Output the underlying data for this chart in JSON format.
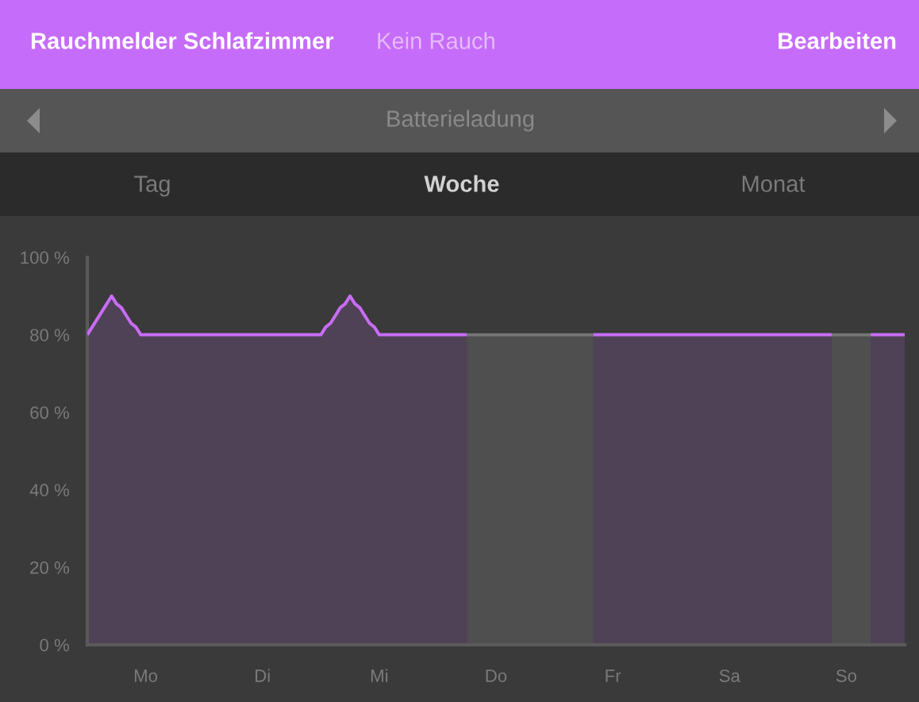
{
  "chart_data": {
    "type": "area",
    "title": "Batterieladung",
    "annotations": [
      "Rauchmelder Schlafzimmer",
      "Kein Rauch",
      "Bearbeiten",
      "Tag",
      "Woche",
      "Monat"
    ],
    "categories": [
      null,
      null,
      null,
      null,
      null,
      null,
      null,
      null,
      null,
      null,
      null,
      null,
      "Mo",
      null,
      null,
      null,
      null,
      null,
      null,
      null,
      null,
      null,
      null,
      null,
      null,
      null,
      null,
      null,
      null,
      null,
      null,
      null,
      null,
      null,
      null,
      null,
      "Di",
      null,
      null,
      null,
      null,
      null,
      null,
      null,
      null,
      null,
      null,
      null,
      null,
      null,
      null,
      null,
      null,
      null,
      null,
      null,
      null,
      null,
      null,
      null,
      "Mi",
      null,
      null,
      null,
      null,
      null,
      null,
      null,
      null,
      null,
      null,
      null,
      null,
      null,
      null,
      null,
      null,
      null,
      null,
      null,
      null,
      null,
      null,
      null,
      "Do",
      null,
      null,
      null,
      null,
      null,
      null,
      null,
      null,
      null,
      null,
      null,
      null,
      null,
      null,
      null,
      null,
      null,
      null,
      null,
      null,
      null,
      null,
      null,
      "Fr",
      null,
      null,
      null,
      null,
      null,
      null,
      null,
      null,
      null,
      null,
      null,
      null,
      null,
      null,
      null,
      null,
      null,
      null,
      null,
      null,
      null,
      null,
      null,
      "Sa",
      null,
      null,
      null,
      null,
      null,
      null,
      null,
      null,
      null,
      null,
      null,
      null,
      null,
      null,
      null,
      null,
      null,
      null,
      null,
      null,
      null,
      null,
      null,
      "So",
      null,
      null,
      null,
      null,
      null,
      null,
      null,
      null,
      null,
      null,
      null,
      null
    ],
    "series": [
      {
        "color": "#c86cf5",
        "values": [
          80,
          82,
          84,
          86,
          88,
          90,
          88,
          87,
          85,
          83,
          82,
          80,
          80,
          80,
          80,
          80,
          80,
          80,
          80,
          80,
          80,
          80,
          80,
          80,
          80,
          80,
          80,
          80,
          80,
          80,
          80,
          80,
          80,
          80,
          80,
          80,
          80,
          80,
          80,
          80,
          80,
          80,
          80,
          80,
          80,
          80,
          80,
          80,
          80,
          82,
          83,
          85,
          87,
          88,
          90,
          88,
          87,
          85,
          83,
          82,
          80,
          80,
          80,
          80,
          80,
          80,
          80,
          80,
          80,
          80,
          80,
          80,
          80,
          80,
          80,
          80,
          80,
          80,
          80,
          null,
          null,
          null,
          null,
          null,
          null,
          null,
          null,
          null,
          null,
          null,
          null,
          null,
          null,
          null,
          null,
          null,
          null,
          null,
          null,
          null,
          null,
          null,
          null,
          null,
          80,
          80,
          80,
          80,
          80,
          80,
          80,
          80,
          80,
          80,
          80,
          80,
          80,
          80,
          80,
          80,
          80,
          80,
          80,
          80,
          80,
          80,
          80,
          80,
          80,
          80,
          80,
          80,
          80,
          80,
          80,
          80,
          80,
          80,
          80,
          80,
          80,
          80,
          80,
          80,
          80,
          80,
          80,
          80,
          80,
          80,
          80,
          80,
          80,
          80,
          null,
          null,
          null,
          null,
          null,
          null,
          null,
          80,
          80,
          80,
          80,
          80,
          80,
          80,
          80
        ]
      },
      {
        "color": "#777777",
        "values": [
          null,
          null,
          null,
          null,
          null,
          null,
          null,
          null,
          null,
          null,
          null,
          null,
          null,
          null,
          null,
          null,
          null,
          null,
          null,
          null,
          null,
          null,
          null,
          null,
          null,
          null,
          null,
          null,
          null,
          null,
          null,
          null,
          null,
          null,
          null,
          null,
          null,
          null,
          null,
          null,
          null,
          null,
          null,
          null,
          null,
          null,
          null,
          null,
          null,
          null,
          null,
          null,
          null,
          null,
          null,
          null,
          null,
          null,
          null,
          null,
          null,
          null,
          null,
          null,
          null,
          null,
          null,
          null,
          null,
          null,
          null,
          null,
          null,
          null,
          null,
          null,
          null,
          null,
          80,
          80,
          80,
          80,
          80,
          80,
          80,
          80,
          80,
          80,
          80,
          80,
          80,
          80,
          80,
          80,
          80,
          80,
          80,
          80,
          80,
          80,
          80,
          80,
          80,
          80,
          80,
          null,
          null,
          null,
          null,
          null,
          null,
          null,
          null,
          null,
          null,
          null,
          null,
          null,
          null,
          null,
          null,
          null,
          null,
          null,
          null,
          null,
          null,
          null,
          null,
          null,
          null,
          null,
          null,
          null,
          null,
          null,
          null,
          null,
          null,
          null,
          null,
          null,
          null,
          null,
          null,
          null,
          null,
          null,
          null,
          null,
          null,
          null,
          null,
          80,
          80,
          80,
          80,
          80,
          80,
          80,
          80,
          80,
          null,
          null,
          null,
          null,
          null,
          null,
          null
        ]
      }
    ],
    "ylim": [
      0,
      100
    ],
    "yticks": [
      {
        "value": 0,
        "label": "0 %"
      },
      {
        "value": 20,
        "label": "20 %"
      },
      {
        "value": 40,
        "label": "40 %"
      },
      {
        "value": 60,
        "label": "60 %"
      },
      {
        "value": 80,
        "label": "80 %"
      },
      {
        "value": 100,
        "label": "100 %"
      }
    ],
    "grid": false
  }
}
